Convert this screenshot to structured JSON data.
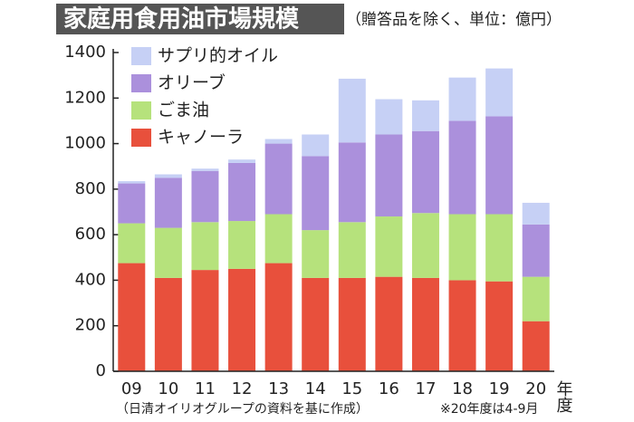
{
  "chart_data": {
    "type": "stacked_bar",
    "title": "家庭用食用油市場規模",
    "subtitle": "（贈答品を除く、単位：億円）",
    "source": "（日清オイリオグループの資料を基に作成）",
    "note": "※20年度は4-9月",
    "x_label": "年度",
    "categories": [
      "09",
      "10",
      "11",
      "12",
      "13",
      "14",
      "15",
      "16",
      "17",
      "18",
      "19",
      "20"
    ],
    "series": [
      {
        "name": "キャノーラ",
        "color": "#e8503c",
        "values": [
          475,
          410,
          445,
          450,
          475,
          410,
          410,
          415,
          410,
          400,
          395,
          220
        ]
      },
      {
        "name": "ごま油",
        "color": "#b6e27c",
        "values": [
          175,
          220,
          210,
          210,
          215,
          210,
          245,
          265,
          285,
          290,
          295,
          195
        ]
      },
      {
        "name": "オリーブ",
        "color": "#ab90dc",
        "values": [
          175,
          220,
          225,
          255,
          310,
          325,
          350,
          360,
          360,
          410,
          430,
          230
        ]
      },
      {
        "name": "サプリ的オイル",
        "color": "#c6d0f5",
        "values": [
          10,
          15,
          10,
          15,
          20,
          95,
          280,
          155,
          135,
          190,
          210,
          95
        ]
      }
    ],
    "ylim": [
      0,
      1400
    ],
    "yticks": [
      0,
      200,
      400,
      600,
      800,
      1000,
      1200,
      1400
    ],
    "grid": false
  }
}
